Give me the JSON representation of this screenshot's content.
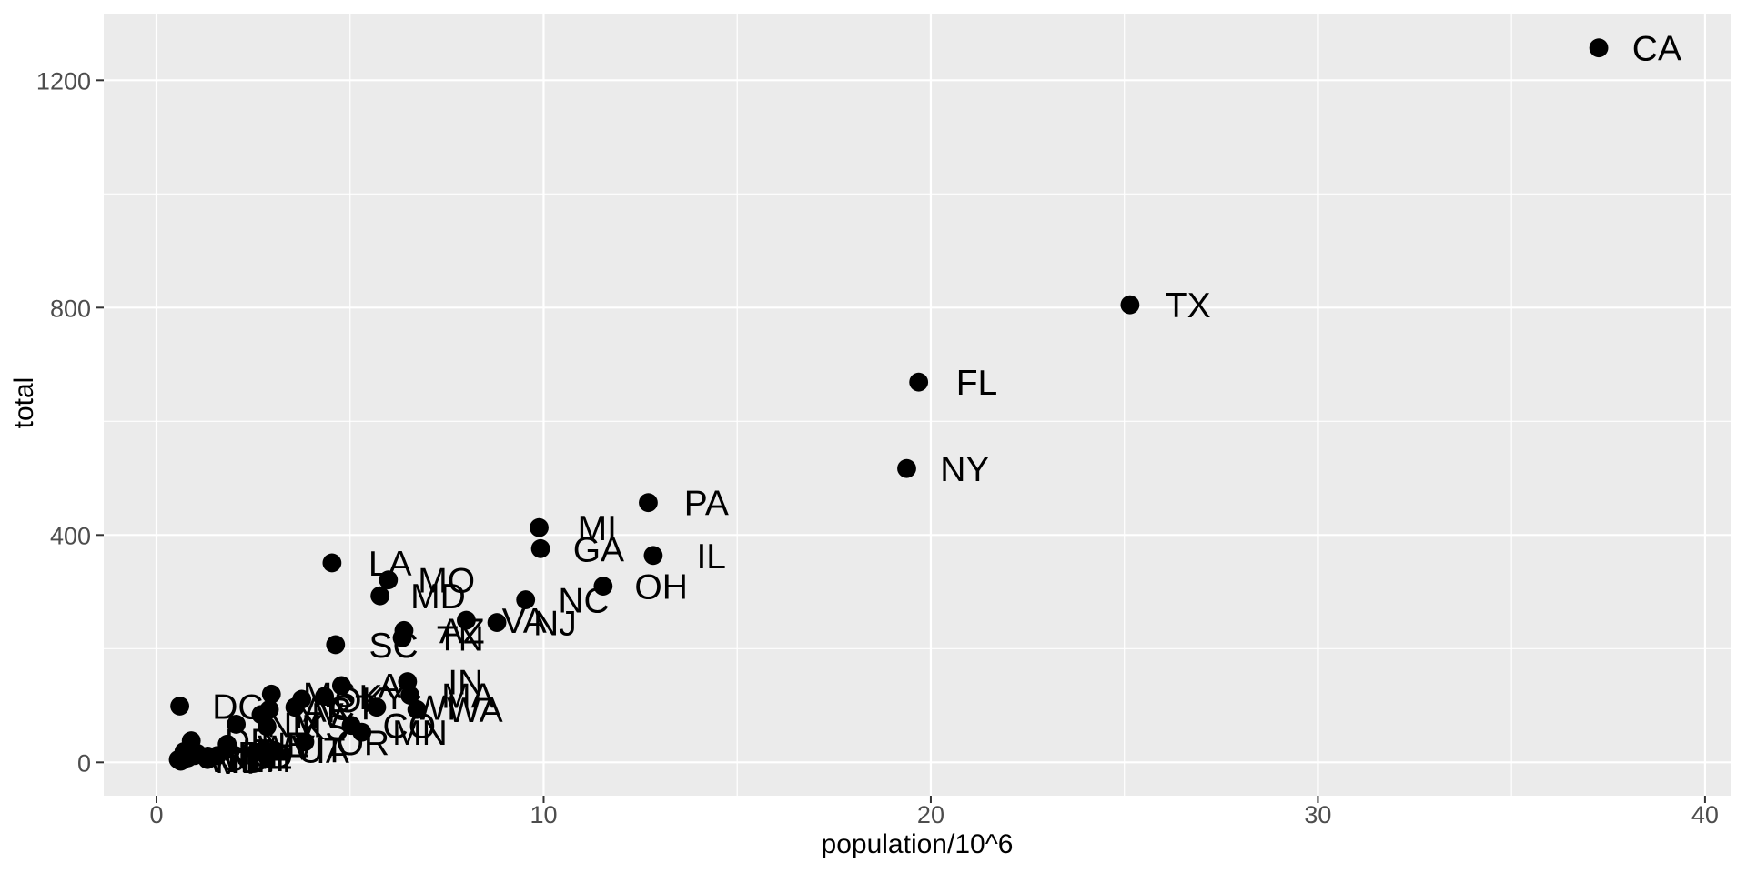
{
  "chart_data": {
    "type": "scatter",
    "title": "",
    "xlabel": "population/10^6",
    "ylabel": "total",
    "x_ticks": [
      0,
      10,
      20,
      30,
      40
    ],
    "x_minor_ticks": [
      5,
      15,
      25,
      35
    ],
    "y_ticks": [
      0,
      400,
      800,
      1200
    ],
    "y_minor_ticks": [
      200,
      600,
      1000
    ],
    "xlim": [
      -1.363,
      40.66
    ],
    "ylim": [
      -58.7,
      1317.3
    ],
    "grid": "major+minor",
    "legend_position": "none",
    "label_nudge_x": 1.5,
    "theme": {
      "panel_background": "#EBEBEB",
      "grid_color": "#FFFFFF",
      "tick_mark_color": "#333333",
      "tick_label_color": "#4D4D4D",
      "point_color": "#000000",
      "label_color": "#000000"
    },
    "points": [
      {
        "abb": "AL",
        "x": 4.779736,
        "y": 135
      },
      {
        "abb": "AK",
        "x": 0.710231,
        "y": 19
      },
      {
        "abb": "AZ",
        "x": 6.392017,
        "y": 232
      },
      {
        "abb": "AR",
        "x": 2.915918,
        "y": 93
      },
      {
        "abb": "CA",
        "x": 37.253956,
        "y": 1257
      },
      {
        "abb": "CO",
        "x": 5.029196,
        "y": 65
      },
      {
        "abb": "CT",
        "x": 3.574097,
        "y": 97
      },
      {
        "abb": "DE",
        "x": 0.897934,
        "y": 38
      },
      {
        "abb": "DC",
        "x": 0.601723,
        "y": 99
      },
      {
        "abb": "FL",
        "x": 19.687653,
        "y": 669
      },
      {
        "abb": "GA",
        "x": 9.92,
        "y": 376
      },
      {
        "abb": "HI",
        "x": 1.360301,
        "y": 7
      },
      {
        "abb": "ID",
        "x": 1.567582,
        "y": 12
      },
      {
        "abb": "IL",
        "x": 12.830632,
        "y": 364
      },
      {
        "abb": "IN",
        "x": 6.483802,
        "y": 142
      },
      {
        "abb": "IA",
        "x": 3.046355,
        "y": 21
      },
      {
        "abb": "KS",
        "x": 2.853118,
        "y": 63
      },
      {
        "abb": "KY",
        "x": 4.339367,
        "y": 116
      },
      {
        "abb": "LA",
        "x": 4.533372,
        "y": 351
      },
      {
        "abb": "ME",
        "x": 1.328361,
        "y": 11
      },
      {
        "abb": "MD",
        "x": 5.773552,
        "y": 293
      },
      {
        "abb": "MA",
        "x": 6.547629,
        "y": 118
      },
      {
        "abb": "MI",
        "x": 9.88364,
        "y": 413
      },
      {
        "abb": "MN",
        "x": 5.303925,
        "y": 53
      },
      {
        "abb": "MS",
        "x": 2.967297,
        "y": 120
      },
      {
        "abb": "MO",
        "x": 5.988927,
        "y": 321
      },
      {
        "abb": "MT",
        "x": 0.989415,
        "y": 12
      },
      {
        "abb": "NE",
        "x": 1.826341,
        "y": 32
      },
      {
        "abb": "NV",
        "x": 2.700551,
        "y": 84
      },
      {
        "abb": "NH",
        "x": 1.31647,
        "y": 5
      },
      {
        "abb": "NJ",
        "x": 8.791894,
        "y": 246
      },
      {
        "abb": "NM",
        "x": 2.059179,
        "y": 67
      },
      {
        "abb": "NY",
        "x": 19.378102,
        "y": 517
      },
      {
        "abb": "NC",
        "x": 9.535483,
        "y": 286
      },
      {
        "abb": "ND",
        "x": 0.672591,
        "y": 4
      },
      {
        "abb": "OH",
        "x": 11.536504,
        "y": 310
      },
      {
        "abb": "OK",
        "x": 3.751351,
        "y": 111
      },
      {
        "abb": "OR",
        "x": 3.831074,
        "y": 36
      },
      {
        "abb": "PA",
        "x": 12.702379,
        "y": 457
      },
      {
        "abb": "RI",
        "x": 1.052567,
        "y": 16
      },
      {
        "abb": "SC",
        "x": 4.625364,
        "y": 207
      },
      {
        "abb": "SD",
        "x": 0.81418,
        "y": 8
      },
      {
        "abb": "TN",
        "x": 6.346105,
        "y": 219
      },
      {
        "abb": "TX",
        "x": 25.145561,
        "y": 805
      },
      {
        "abb": "UT",
        "x": 2.763885,
        "y": 22
      },
      {
        "abb": "VT",
        "x": 0.625741,
        "y": 2
      },
      {
        "abb": "VA",
        "x": 8.001024,
        "y": 250
      },
      {
        "abb": "WA",
        "x": 6.72454,
        "y": 93
      },
      {
        "abb": "WV",
        "x": 1.852994,
        "y": 27
      },
      {
        "abb": "WI",
        "x": 5.686986,
        "y": 97
      },
      {
        "abb": "WY",
        "x": 0.563626,
        "y": 5
      }
    ]
  }
}
